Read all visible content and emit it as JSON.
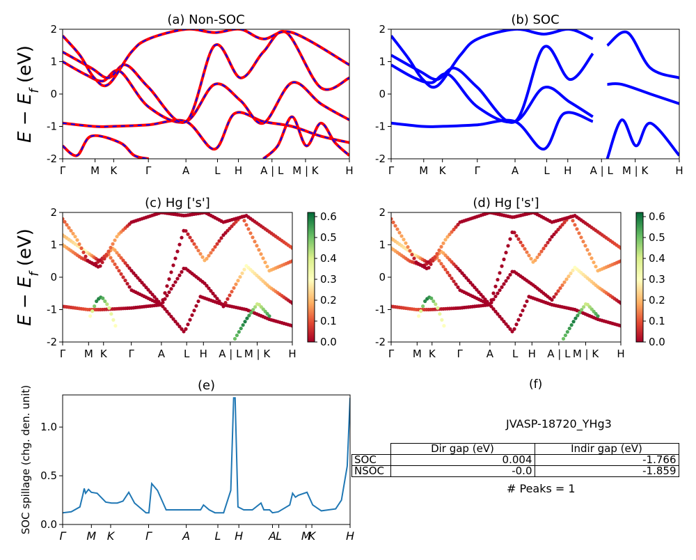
{
  "kpath_labels": [
    "Γ",
    "M",
    "K",
    "Γ",
    "A",
    "L",
    "H",
    "A | L",
    "M | K",
    "H"
  ],
  "kpath_labels_spill": [
    "Γ",
    "M",
    "K",
    "Γ",
    "A",
    "L",
    "H",
    "A",
    "L",
    "M",
    "K",
    "H"
  ],
  "band_ylabel": "E − E_f (eV)",
  "colors": {
    "nonsoc_line": "#ff0000",
    "nonsoc_dash": "#0000ff",
    "soc_line": "#0000ff",
    "spillage_line": "#1f77b4"
  },
  "colormap": "RdYlGn",
  "chart_data": [
    {
      "id": "a",
      "type": "line",
      "title": "(a) Non-SOC",
      "ylabel": "E − E_f (eV)",
      "ylim": [
        -2,
        2
      ],
      "yticks": [
        -2,
        -1,
        0,
        1,
        2
      ],
      "xticks": [
        "Γ",
        "M",
        "K",
        "Γ",
        "A",
        "L",
        "H",
        "A | L",
        "M | K",
        "H"
      ],
      "series": [
        {
          "x": [
            0,
            0.11,
            0.17,
            0.3,
            0.43,
            0.53,
            0.6,
            0.7,
            0.8,
            0.9,
            1.0
          ],
          "y": [
            -0.9,
            -1.0,
            -1.0,
            -0.95,
            -0.85,
            -1.7,
            -0.6,
            -0.85,
            -1.0,
            -1.3,
            -1.5
          ]
        },
        {
          "x": [
            0,
            0.08,
            0.14,
            0.2,
            0.3,
            0.43,
            0.53,
            0.62,
            0.7,
            0.8,
            0.9,
            1.0
          ],
          "y": [
            1.0,
            0.6,
            0.4,
            0.7,
            -0.4,
            -0.85,
            0.3,
            -0.2,
            -0.9,
            0.35,
            -0.3,
            -0.8
          ]
        },
        {
          "x": [
            0,
            0.1,
            0.16,
            0.22,
            0.3,
            0.43,
            0.53,
            0.62,
            0.7,
            0.78,
            0.9,
            1.0
          ],
          "y": [
            1.3,
            0.8,
            0.5,
            0.9,
            0.2,
            -0.85,
            1.5,
            0.5,
            1.3,
            1.9,
            0.2,
            0.5
          ]
        },
        {
          "x": [
            0,
            0.06,
            0.11,
            0.16,
            0.24,
            0.3,
            0.43,
            0.53,
            0.62,
            0.7,
            0.8,
            1.0
          ],
          "y": [
            1.8,
            1.2,
            0.5,
            0.3,
            1.3,
            1.7,
            2.0,
            1.9,
            2.0,
            1.7,
            1.9,
            0.9
          ]
        },
        {
          "x": [
            0,
            0.05,
            0.1,
            0.2,
            0.25,
            0.3
          ],
          "y": [
            -1.6,
            -1.9,
            -1.3,
            -1.5,
            -1.9,
            -2.0
          ]
        },
        {
          "x": [
            0.7,
            0.75,
            0.8,
            0.85,
            0.9,
            0.95,
            1.0
          ],
          "y": [
            -2.0,
            -1.6,
            -0.7,
            -1.6,
            -0.9,
            -1.5,
            -1.9
          ]
        }
      ]
    },
    {
      "id": "b",
      "type": "line",
      "title": "(b) SOC",
      "ylim": [
        -2,
        2
      ],
      "yticks": [
        -2,
        -1,
        0,
        1,
        2
      ],
      "xticks": [
        "Γ",
        "M",
        "K",
        "Γ",
        "A",
        "L",
        "H",
        "A | L",
        "M | K",
        "H"
      ],
      "series": [
        {
          "x": [
            0,
            0.11,
            0.17,
            0.3,
            0.43,
            0.53,
            0.6,
            0.7
          ],
          "y": [
            -0.9,
            -1.0,
            -1.0,
            -0.95,
            -0.85,
            -1.7,
            -0.6,
            -0.85
          ]
        },
        {
          "x": [
            0,
            0.08,
            0.14,
            0.2,
            0.3,
            0.43,
            0.53,
            0.62,
            0.7
          ],
          "y": [
            0.9,
            0.5,
            0.35,
            0.6,
            -0.4,
            -0.85,
            0.2,
            -0.25,
            -0.7
          ]
        },
        {
          "x": [
            0,
            0.1,
            0.16,
            0.22,
            0.3,
            0.43,
            0.53,
            0.62,
            0.7
          ],
          "y": [
            1.2,
            0.7,
            0.45,
            0.8,
            0.2,
            -0.85,
            1.45,
            0.45,
            1.25
          ]
        },
        {
          "x": [
            0,
            0.06,
            0.11,
            0.16,
            0.24,
            0.3,
            0.43,
            0.53,
            0.62,
            0.7
          ],
          "y": [
            1.8,
            1.1,
            0.45,
            0.25,
            1.2,
            1.7,
            2.0,
            1.85,
            2.0,
            1.7
          ]
        },
        {
          "x": [
            0.75,
            0.8,
            0.9,
            1.0
          ],
          "y": [
            0.3,
            0.3,
            0.0,
            -0.3
          ]
        },
        {
          "x": [
            0.75,
            0.82,
            0.9,
            1.0
          ],
          "y": [
            1.5,
            1.9,
            0.8,
            0.5
          ]
        },
        {
          "x": [
            0.75,
            0.8,
            0.85,
            0.9,
            1.0
          ],
          "y": [
            -2.0,
            -0.8,
            -1.6,
            -0.9,
            -1.9
          ]
        }
      ]
    },
    {
      "id": "c",
      "type": "scatter",
      "title": "(c)  Hg ['s']",
      "ylim": [
        -2,
        2
      ],
      "yticks": [
        -2,
        -1,
        0,
        1,
        2
      ],
      "xticks": [
        "Γ",
        "M",
        "K",
        "Γ",
        "A",
        "L",
        "H",
        "A | L",
        "M | K",
        "H"
      ],
      "colorbar": {
        "min": 0.0,
        "max": 0.62,
        "ticks": [
          0.0,
          0.1,
          0.2,
          0.3,
          0.4,
          0.5,
          0.6
        ],
        "colormap": "RdYlGn"
      },
      "tracks": [
        {
          "x": [
            0,
            0.11,
            0.17,
            0.3,
            0.43,
            0.53,
            0.6,
            0.7,
            0.8,
            0.9,
            1.0
          ],
          "y": [
            -0.9,
            -1.0,
            -1.0,
            -0.95,
            -0.85,
            -1.7,
            -0.6,
            -0.85,
            -1.0,
            -1.3,
            -1.5
          ],
          "w": [
            0.05,
            0.1,
            0.05,
            0.0,
            0.0,
            0.0,
            0.0,
            0.0,
            0.0,
            0.0,
            0.0
          ]
        },
        {
          "x": [
            0.12,
            0.15,
            0.17,
            0.2,
            0.23
          ],
          "y": [
            -1.2,
            -0.7,
            -0.6,
            -0.9,
            -1.5
          ],
          "w": [
            0.3,
            0.6,
            0.55,
            0.4,
            0.3
          ]
        },
        {
          "x": [
            0,
            0.08,
            0.14,
            0.2,
            0.3,
            0.43,
            0.53,
            0.62,
            0.7,
            0.8,
            0.9,
            1.0
          ],
          "y": [
            1.0,
            0.6,
            0.4,
            0.7,
            -0.4,
            -0.85,
            0.3,
            -0.2,
            -0.9,
            0.35,
            -0.3,
            -0.8
          ],
          "w": [
            0.2,
            0.1,
            0.0,
            0.15,
            0.0,
            0.0,
            0.0,
            0.0,
            0.0,
            0.3,
            0.2,
            0.0
          ]
        },
        {
          "x": [
            0,
            0.1,
            0.16,
            0.22,
            0.3,
            0.43,
            0.53,
            0.62,
            0.7,
            0.78,
            0.9,
            1.0
          ],
          "y": [
            1.3,
            0.8,
            0.5,
            0.9,
            0.2,
            -0.85,
            1.5,
            0.5,
            1.3,
            1.9,
            0.2,
            0.5
          ],
          "w": [
            0.2,
            0.3,
            0.0,
            0.2,
            0.0,
            0.0,
            0.0,
            0.2,
            0.0,
            0.1,
            0.2,
            0.1
          ]
        },
        {
          "x": [
            0,
            0.06,
            0.11,
            0.16,
            0.24,
            0.3,
            0.43,
            0.53,
            0.62,
            0.7,
            0.8,
            1.0
          ],
          "y": [
            1.8,
            1.2,
            0.5,
            0.3,
            1.3,
            1.7,
            2.0,
            1.9,
            2.0,
            1.7,
            1.9,
            0.9
          ],
          "w": [
            0.1,
            0.2,
            0.0,
            0.0,
            0.2,
            0.0,
            0.0,
            0.0,
            0.0,
            0.0,
            0.0,
            0.1
          ]
        },
        {
          "x": [
            0.75,
            0.8,
            0.85,
            0.9
          ],
          "y": [
            -1.9,
            -1.3,
            -0.8,
            -1.2
          ],
          "w": [
            0.5,
            0.6,
            0.4,
            0.55
          ]
        }
      ]
    },
    {
      "id": "d",
      "type": "scatter",
      "title": "(d) Hg ['s']",
      "ylim": [
        -2,
        2
      ],
      "yticks": [
        -2,
        -1,
        0,
        1,
        2
      ],
      "xticks": [
        "Γ",
        "M",
        "K",
        "Γ",
        "A",
        "L",
        "H",
        "A | L",
        "M | K",
        "H"
      ],
      "colorbar": {
        "min": 0.0,
        "max": 0.62,
        "ticks": [
          0.0,
          0.1,
          0.2,
          0.3,
          0.4,
          0.5,
          0.6
        ],
        "colormap": "RdYlGn"
      },
      "tracks": [
        {
          "x": [
            0,
            0.11,
            0.17,
            0.3,
            0.43,
            0.53,
            0.6,
            0.7,
            0.8,
            0.9,
            1.0
          ],
          "y": [
            -0.9,
            -1.0,
            -1.0,
            -0.95,
            -0.85,
            -1.7,
            -0.6,
            -0.85,
            -1.0,
            -1.3,
            -1.5
          ],
          "w": [
            0.05,
            0.1,
            0.05,
            0.0,
            0.0,
            0.0,
            0.0,
            0.0,
            0.0,
            0.0,
            0.0
          ]
        },
        {
          "x": [
            0.12,
            0.15,
            0.17,
            0.2,
            0.23
          ],
          "y": [
            -1.2,
            -0.7,
            -0.6,
            -0.9,
            -1.5
          ],
          "w": [
            0.3,
            0.6,
            0.55,
            0.4,
            0.3
          ]
        },
        {
          "x": [
            0,
            0.08,
            0.14,
            0.2,
            0.3,
            0.43,
            0.53,
            0.62,
            0.7,
            0.8,
            0.9,
            1.0
          ],
          "y": [
            0.9,
            0.5,
            0.35,
            0.6,
            -0.4,
            -0.85,
            0.2,
            -0.25,
            -0.7,
            0.3,
            -0.3,
            -0.8
          ],
          "w": [
            0.2,
            0.1,
            0.0,
            0.15,
            0.0,
            0.0,
            0.0,
            0.0,
            0.0,
            0.3,
            0.2,
            0.0
          ]
        },
        {
          "x": [
            0,
            0.1,
            0.16,
            0.22,
            0.3,
            0.43,
            0.53,
            0.62,
            0.7,
            0.78,
            0.9,
            1.0
          ],
          "y": [
            1.2,
            0.7,
            0.45,
            0.8,
            0.2,
            -0.85,
            1.45,
            0.45,
            1.25,
            1.9,
            0.2,
            0.5
          ],
          "w": [
            0.2,
            0.3,
            0.0,
            0.2,
            0.0,
            0.0,
            0.0,
            0.2,
            0.0,
            0.1,
            0.2,
            0.1
          ]
        },
        {
          "x": [
            0,
            0.06,
            0.11,
            0.16,
            0.24,
            0.3,
            0.43,
            0.53,
            0.62,
            0.7,
            0.8,
            1.0
          ],
          "y": [
            1.8,
            1.1,
            0.45,
            0.25,
            1.2,
            1.7,
            2.0,
            1.85,
            2.0,
            1.7,
            1.9,
            0.9
          ],
          "w": [
            0.1,
            0.2,
            0.0,
            0.0,
            0.2,
            0.0,
            0.0,
            0.0,
            0.0,
            0.0,
            0.0,
            0.1
          ]
        },
        {
          "x": [
            0.75,
            0.8,
            0.85,
            0.9
          ],
          "y": [
            -1.9,
            -1.3,
            -0.8,
            -1.2
          ],
          "w": [
            0.5,
            0.6,
            0.4,
            0.55
          ]
        }
      ]
    },
    {
      "id": "e",
      "type": "line",
      "title": "(e)",
      "ylabel": "SOC spillage (chg. den. unit)",
      "ylim": [
        0.0,
        1.33
      ],
      "yticks": [
        0.0,
        0.5,
        1.0
      ],
      "xticks": [
        "Γ",
        "M",
        "K",
        "Γ",
        "A",
        "L",
        "H",
        "A",
        "L",
        "M",
        "K",
        "H"
      ],
      "series": [
        {
          "x": [
            0,
            0.03,
            0.06,
            0.07,
            0.075,
            0.08,
            0.09,
            0.1,
            0.12,
            0.13,
            0.15,
            0.17,
            0.19,
            0.21,
            0.23,
            0.25,
            0.29,
            0.3,
            0.31,
            0.33,
            0.36,
            0.42,
            0.48,
            0.49,
            0.51,
            0.53,
            0.56,
            0.585,
            0.595,
            0.6,
            0.61,
            0.63,
            0.66,
            0.69,
            0.7,
            0.72,
            0.73,
            0.75,
            0.79,
            0.8,
            0.81,
            0.82,
            0.85,
            0.87,
            0.9,
            0.95,
            0.97,
            0.99,
            1.0
          ],
          "y": [
            0.12,
            0.13,
            0.18,
            0.3,
            0.37,
            0.32,
            0.36,
            0.33,
            0.32,
            0.29,
            0.23,
            0.22,
            0.22,
            0.24,
            0.33,
            0.22,
            0.12,
            0.12,
            0.42,
            0.35,
            0.15,
            0.15,
            0.15,
            0.2,
            0.15,
            0.12,
            0.12,
            0.35,
            1.3,
            1.3,
            0.18,
            0.15,
            0.15,
            0.22,
            0.15,
            0.15,
            0.12,
            0.13,
            0.2,
            0.32,
            0.28,
            0.3,
            0.33,
            0.2,
            0.14,
            0.16,
            0.25,
            0.6,
            1.3
          ]
        }
      ]
    }
  ],
  "f_panel": {
    "title": "(f)",
    "material": "JVASP-18720_YHg3",
    "col_dir": "Dir gap (eV)",
    "col_indir": "Indir gap (eV)",
    "rows": [
      {
        "label": "SOC",
        "dir": "0.004",
        "indir": "-1.766"
      },
      {
        "label": "NSOC",
        "dir": "-0.0",
        "indir": "-1.859"
      }
    ],
    "peaks": "# Peaks = 1"
  }
}
